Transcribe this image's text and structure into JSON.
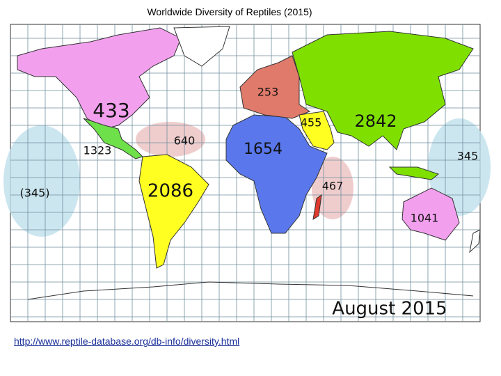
{
  "title": "Worldwide Diversity of Reptiles (2015)",
  "regions": [
    {
      "label": "433"
    },
    {
      "label": "1323"
    },
    {
      "label": "640"
    },
    {
      "label": "2086"
    },
    {
      "label": "(345)"
    },
    {
      "label": "253"
    },
    {
      "label": "1654"
    },
    {
      "label": "455"
    },
    {
      "label": "2842"
    },
    {
      "label": "467"
    },
    {
      "label": "345"
    },
    {
      "label": "1041"
    }
  ],
  "date": "August 2015",
  "url": "http://www.reptile-database.org/db-info/diversity.html"
}
